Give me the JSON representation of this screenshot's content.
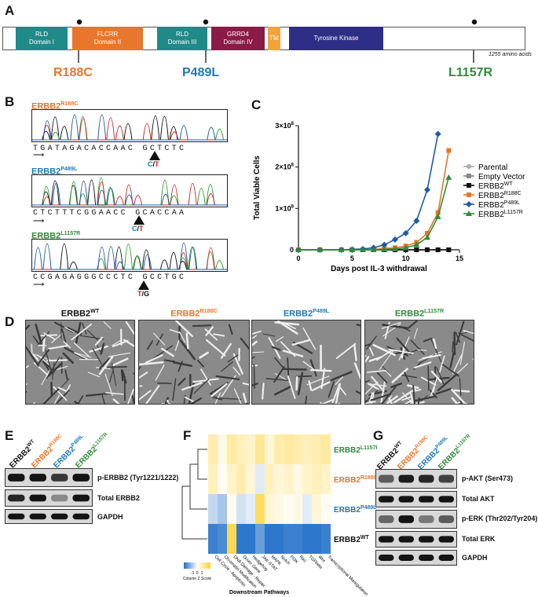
{
  "panels": [
    "A",
    "B",
    "C",
    "D",
    "E",
    "F",
    "G"
  ],
  "panel_a": {
    "domains": [
      {
        "line1": "RLD",
        "line2": "Domain I",
        "color": "#1f8a87"
      },
      {
        "line1": "FLCRR",
        "line2": "Domain II",
        "color": "#e8762c"
      },
      {
        "line1": "RLD",
        "line2": "Domain III",
        "color": "#1f8a87"
      },
      {
        "line1": "GRRD4",
        "line2": "Domain IV",
        "color": "#8a1a46"
      },
      {
        "line1": "TM",
        "line2": "",
        "color": "#f2a43a"
      },
      {
        "line1": "Tyrosine Kinase",
        "line2": "",
        "color": "#2e2e86"
      }
    ],
    "length_label": "1255 amino acids",
    "mutations": [
      {
        "label": "R188C",
        "color": "#e8762c"
      },
      {
        "label": "P489L",
        "color": "#1f78b4"
      },
      {
        "label": "L1157R",
        "color": "#2e8b3a"
      }
    ]
  },
  "panel_b": {
    "traces": [
      {
        "gene": "ERBB2",
        "sup": "R188C",
        "color": "#e8762c",
        "sequence": "TGATAGACACCAAC GCTCTC",
        "call_a": "C",
        "call_sep": "/",
        "call_b": "T"
      },
      {
        "gene": "ERBB2",
        "sup": "P489L",
        "color": "#1f78b4",
        "sequence": "CTCTTTCGGAACC GCACCAA",
        "call_a": "C",
        "call_sep": "/",
        "call_b": "T"
      },
      {
        "gene": "ERBB2",
        "sup": "L1157R",
        "color": "#2e8b3a",
        "sequence": "CCGAGAGGGCCCTC GCCTGC",
        "call_a": "T",
        "call_sep": "/",
        "call_b": "G"
      }
    ]
  },
  "chart_data": {
    "type": "line",
    "xlabel": "Days post IL-3 withdrawal",
    "ylabel": "Total Viable Cells",
    "xlim": [
      0,
      15
    ],
    "ylim": [
      0,
      300000000
    ],
    "xticks": [
      "0",
      "5",
      "10",
      "15"
    ],
    "yticks": [
      "0",
      "1×10",
      "2×10",
      "3×10"
    ],
    "ytick_exp": "8",
    "series": [
      {
        "name": "Parental",
        "sup": "",
        "color": "#aaaaaa",
        "marker": "circle",
        "x": [
          0,
          2,
          4,
          5,
          6,
          7,
          8,
          9,
          10,
          11,
          12,
          13,
          14
        ],
        "y": [
          0,
          0,
          0,
          0,
          0,
          0,
          0,
          0,
          0,
          0,
          0,
          0,
          0
        ]
      },
      {
        "name": "Empty Vector",
        "sup": "",
        "color": "#888888",
        "marker": "square",
        "x": [
          0,
          2,
          4,
          5,
          6,
          7,
          8,
          9,
          10,
          11,
          12,
          13,
          14
        ],
        "y": [
          0,
          0,
          0,
          0,
          0,
          0,
          0,
          0,
          0,
          0,
          0,
          0,
          0
        ]
      },
      {
        "name": "ERBB2",
        "sup": "WT",
        "color": "#111111",
        "marker": "square",
        "x": [
          0,
          2,
          4,
          5,
          6,
          7,
          8,
          9,
          10,
          11,
          12,
          13,
          14
        ],
        "y": [
          0,
          0,
          0,
          0,
          0,
          0,
          0,
          0,
          0,
          0,
          0,
          0,
          0
        ]
      },
      {
        "name": "ERBB2",
        "sup": "R188C",
        "color": "#e8762c",
        "marker": "square",
        "x": [
          0,
          2,
          4,
          5,
          6,
          7,
          8,
          9,
          10,
          11,
          12,
          13,
          14
        ],
        "y": [
          0,
          0,
          0,
          0,
          0,
          1000000,
          3000000,
          5000000,
          9000000,
          18000000,
          40000000,
          90000000,
          240000000
        ]
      },
      {
        "name": "ERBB2",
        "sup": "P489L",
        "color": "#1f5aa6",
        "marker": "diamond",
        "x": [
          0,
          2,
          4,
          5,
          6,
          7,
          8,
          9,
          10,
          11,
          12,
          13
        ],
        "y": [
          0,
          0,
          0,
          1000000,
          2000000,
          5000000,
          12000000,
          25000000,
          40000000,
          70000000,
          145000000,
          280000000
        ]
      },
      {
        "name": "ERBB2",
        "sup": "L1157R",
        "color": "#2e8b3a",
        "marker": "triangle",
        "x": [
          0,
          2,
          4,
          5,
          6,
          7,
          8,
          9,
          10,
          11,
          12,
          13,
          14
        ],
        "y": [
          0,
          0,
          0,
          0,
          0,
          0,
          1000000,
          2000000,
          5000000,
          12000000,
          30000000,
          80000000,
          175000000
        ]
      }
    ]
  },
  "panel_d": {
    "titles": [
      {
        "gene": "ERBB2",
        "sup": "WT",
        "color": "#111111"
      },
      {
        "gene": "ERBB2",
        "sup": "R188C",
        "color": "#e8762c"
      },
      {
        "gene": "ERBB2",
        "sup": "P489L",
        "color": "#1f78b4"
      },
      {
        "gene": "ERBB2",
        "sup": "L1157R",
        "color": "#2e8b3a"
      }
    ]
  },
  "panel_e": {
    "lanes": [
      {
        "gene": "ERBB2",
        "sup": "WT",
        "color": "#111111"
      },
      {
        "gene": "ERBB2",
        "sup": "R188C",
        "color": "#e8762c"
      },
      {
        "gene": "ERBB2",
        "sup": "P489L",
        "color": "#1f78b4"
      },
      {
        "gene": "ERBB2",
        "sup": "L1157R",
        "color": "#2e8b3a"
      }
    ],
    "blots": [
      "p-ERBB2 (Tyr1221/1222)",
      "Total ERBB2",
      "GAPDH"
    ]
  },
  "panel_f": {
    "rows": [
      {
        "gene": "ERBB2",
        "sup": "L1157R",
        "color": "#2e8b3a"
      },
      {
        "gene": "ERBB2",
        "sup": "R188C",
        "color": "#e8762c"
      },
      {
        "gene": "ERBB2",
        "sup": "P489L",
        "color": "#1f78b4"
      },
      {
        "gene": "ERBB2",
        "sup": "WT",
        "color": "#111111"
      }
    ],
    "columns": [
      "Cell Cycle - Apoptosis",
      "Chromatin Modification",
      "DNA Damage - Repair",
      "Driver Gene",
      "Hedgehog",
      "JAK-STAT",
      "MAPK",
      "Notch",
      "PI3K",
      "Ras",
      "TGFbeta",
      "Wnt",
      "Transcriptional Misregulation"
    ],
    "values": [
      [
        0.6,
        0.2,
        0.7,
        0.5,
        0.4,
        0.8,
        0.3,
        0.6,
        0.7,
        0.6,
        0.5,
        0.6,
        0.7
      ],
      [
        0.5,
        0.1,
        0.4,
        0.6,
        0.3,
        -0.2,
        0.5,
        0.3,
        0.4,
        0.2,
        0.4,
        0.5,
        0.4
      ],
      [
        -0.4,
        -0.6,
        0.1,
        -0.3,
        -0.2,
        1.2,
        0.3,
        0.2,
        0.1,
        0.2,
        -0.2,
        0.3,
        0.1
      ],
      [
        -1.3,
        -1.2,
        1.3,
        -1.4,
        -1.4,
        -1.0,
        -1.4,
        -1.4,
        -1.3,
        -1.3,
        -1.4,
        -1.4,
        -1.3
      ]
    ],
    "scale_ticks": [
      "-1",
      "0",
      "1"
    ],
    "scale_label": "Column Z Score",
    "xlabel": "Downstream Pathways"
  },
  "panel_g": {
    "lanes": [
      {
        "gene": "ERBB2",
        "sup": "WT",
        "color": "#111111"
      },
      {
        "gene": "ERBB2",
        "sup": "R188C",
        "color": "#e8762c"
      },
      {
        "gene": "ERBB2",
        "sup": "P489L",
        "color": "#1f78b4"
      },
      {
        "gene": "ERBB2",
        "sup": "L1157R",
        "color": "#2e8b3a"
      }
    ],
    "blots": [
      "p-AKT (Ser473)",
      "Total AKT",
      "p-ERK (Thr202/Tyr204)",
      "Total ERK",
      "GAPDH"
    ]
  }
}
